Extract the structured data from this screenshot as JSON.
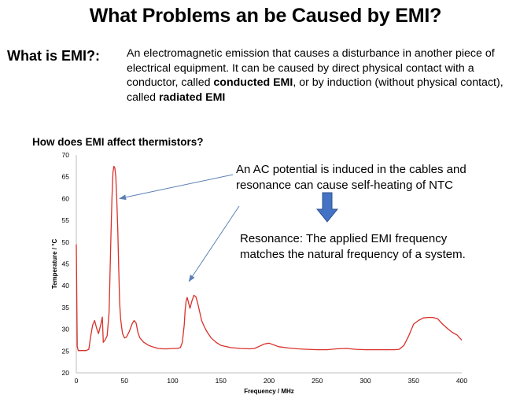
{
  "slide": {
    "title": "What Problems an be Caused by EMI?",
    "what_label": "What is EMI?:",
    "definition": [
      {
        "text": "An electromagnetic emission that causes a disturbance in another piece of electrical equipment. It can be caused by direct physical contact with a conductor, called ",
        "bold": false
      },
      {
        "text": "conducted EMI",
        "bold": true
      },
      {
        "text": ", or by induction (without physical contact), called ",
        "bold": false
      },
      {
        "text": "radiated EMI",
        "bold": true
      }
    ],
    "subheading": "How does EMI affect thermistors?",
    "callout1": "An AC potential is induced in the cables and resonance can cause self-heating of NTC",
    "callout2": "Resonance: The applied EMI frequency matches the natural frequency of a system."
  },
  "colors": {
    "line": "#d9312b",
    "arrow": "#5b7fb5",
    "down_arrow": "#4472c4"
  },
  "chart_data": {
    "type": "line",
    "xlabel": "Frequency / MHz",
    "ylabel": "Temperature / °C",
    "xlim": [
      0,
      400
    ],
    "ylim": [
      20,
      70
    ],
    "xticks": [
      0,
      50,
      100,
      150,
      200,
      250,
      300,
      350,
      400
    ],
    "yticks": [
      20,
      25,
      30,
      35,
      40,
      45,
      50,
      55,
      60,
      65,
      70
    ],
    "grid": false,
    "series": [
      {
        "x": [
          0,
          1,
          2,
          5,
          10,
          13,
          15,
          17,
          19,
          21,
          23,
          25,
          27,
          28,
          29,
          30,
          32,
          34,
          36,
          37,
          38,
          39,
          40,
          41,
          42,
          43,
          44,
          45,
          46,
          47,
          48,
          50,
          52,
          55,
          58,
          60,
          62,
          64,
          66,
          68,
          70,
          75,
          80,
          85,
          90,
          95,
          100,
          105,
          108,
          110,
          112,
          113,
          114,
          115,
          116,
          118,
          120,
          122,
          124,
          126,
          128,
          130,
          133,
          136,
          140,
          145,
          150,
          160,
          170,
          180,
          185,
          190,
          195,
          200,
          205,
          210,
          220,
          230,
          240,
          250,
          260,
          270,
          280,
          290,
          300,
          310,
          320,
          330,
          335,
          340,
          345,
          350,
          355,
          360,
          365,
          370,
          375,
          380,
          385,
          390,
          395,
          400
        ],
        "y": [
          49.5,
          26,
          25.1,
          25.1,
          25.1,
          25.4,
          28.5,
          31,
          32,
          30.3,
          29,
          30.7,
          32.8,
          27,
          27.3,
          27.6,
          28.5,
          34,
          52,
          60,
          66,
          67.4,
          67,
          65,
          60,
          53,
          44,
          36,
          32.5,
          30.5,
          29,
          28,
          28.2,
          29.5,
          31.3,
          32,
          31.5,
          29.2,
          28,
          27.5,
          27,
          26.3,
          25.9,
          25.6,
          25.5,
          25.5,
          25.6,
          25.6,
          25.8,
          27,
          31,
          34.5,
          36.5,
          37.3,
          36.5,
          34.8,
          36.5,
          37.8,
          37.5,
          36,
          34,
          32,
          30.5,
          29.3,
          28,
          27,
          26.3,
          25.8,
          25.6,
          25.5,
          25.6,
          26.1,
          26.6,
          26.8,
          26.4,
          26,
          25.7,
          25.5,
          25.4,
          25.3,
          25.3,
          25.5,
          25.6,
          25.4,
          25.3,
          25.3,
          25.3,
          25.3,
          25.4,
          26.3,
          28.5,
          31.2,
          32,
          32.6,
          32.7,
          32.7,
          32.4,
          31.2,
          30.2,
          29.3,
          28.7,
          27.5
        ]
      }
    ],
    "annotations": [
      {
        "text_ref": "callout1",
        "points_to": {
          "x": 45,
          "y": 60
        }
      },
      {
        "text_ref": "callout1",
        "points_to": {
          "x": 117,
          "y": 41
        }
      }
    ]
  }
}
